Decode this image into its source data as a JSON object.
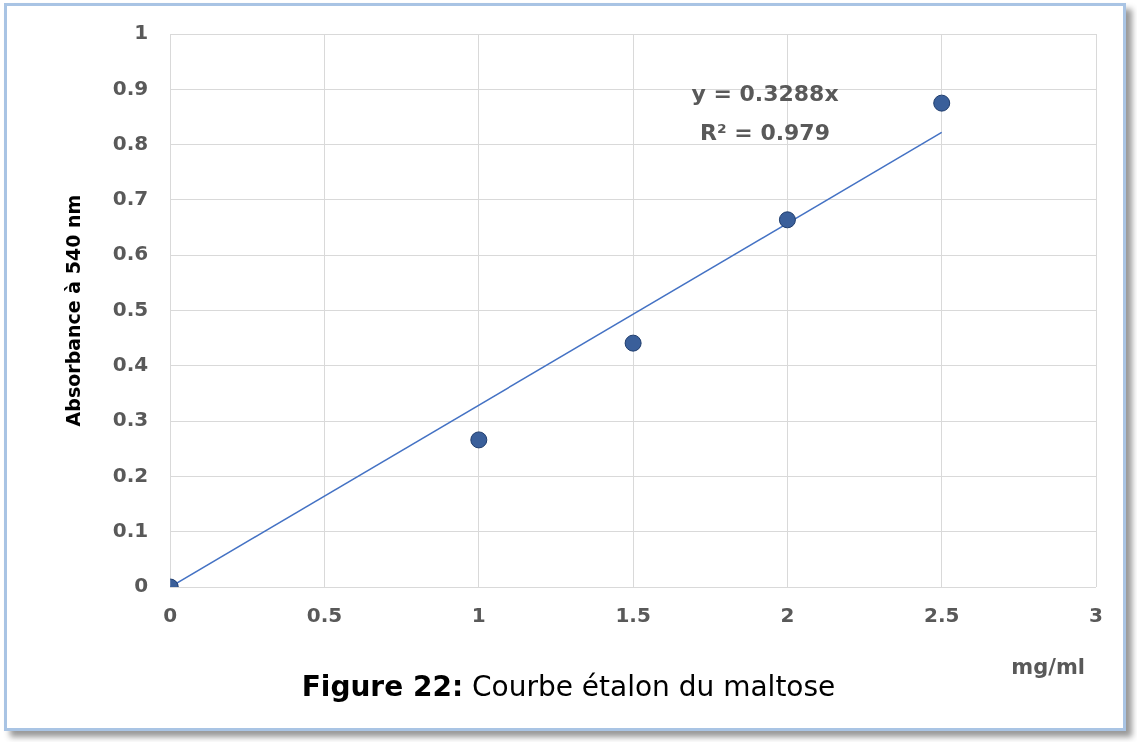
{
  "chart_data": {
    "type": "scatter",
    "ylabel": "Absorbance à 540 nm",
    "xlabel": "mg/ml",
    "x": [
      0,
      1,
      1.5,
      2,
      2.5
    ],
    "series": [
      {
        "type": "scatter",
        "color": "#3a5f9a",
        "values": [
          0,
          0.266,
          0.441,
          0.664,
          0.875
        ]
      },
      {
        "type": "line",
        "color": "#4472c4",
        "x": [
          0,
          2.5
        ],
        "values": [
          0,
          0.822
        ],
        "marker": "none"
      }
    ],
    "xlim": [
      0,
      3
    ],
    "xticks": [
      0,
      0.5,
      1,
      1.5,
      2,
      2.5,
      3
    ],
    "ylim": [
      0,
      1
    ],
    "yticks": [
      0,
      0.1,
      0.2,
      0.3,
      0.4,
      0.5,
      0.6,
      0.7,
      0.8,
      0.9,
      1
    ],
    "grid": true,
    "legend": false,
    "marker": "circle",
    "annotations": [
      "y = 0.3288x",
      "R² = 0.979",
      "Figure 22: Courbe étalon du maltose"
    ]
  }
}
